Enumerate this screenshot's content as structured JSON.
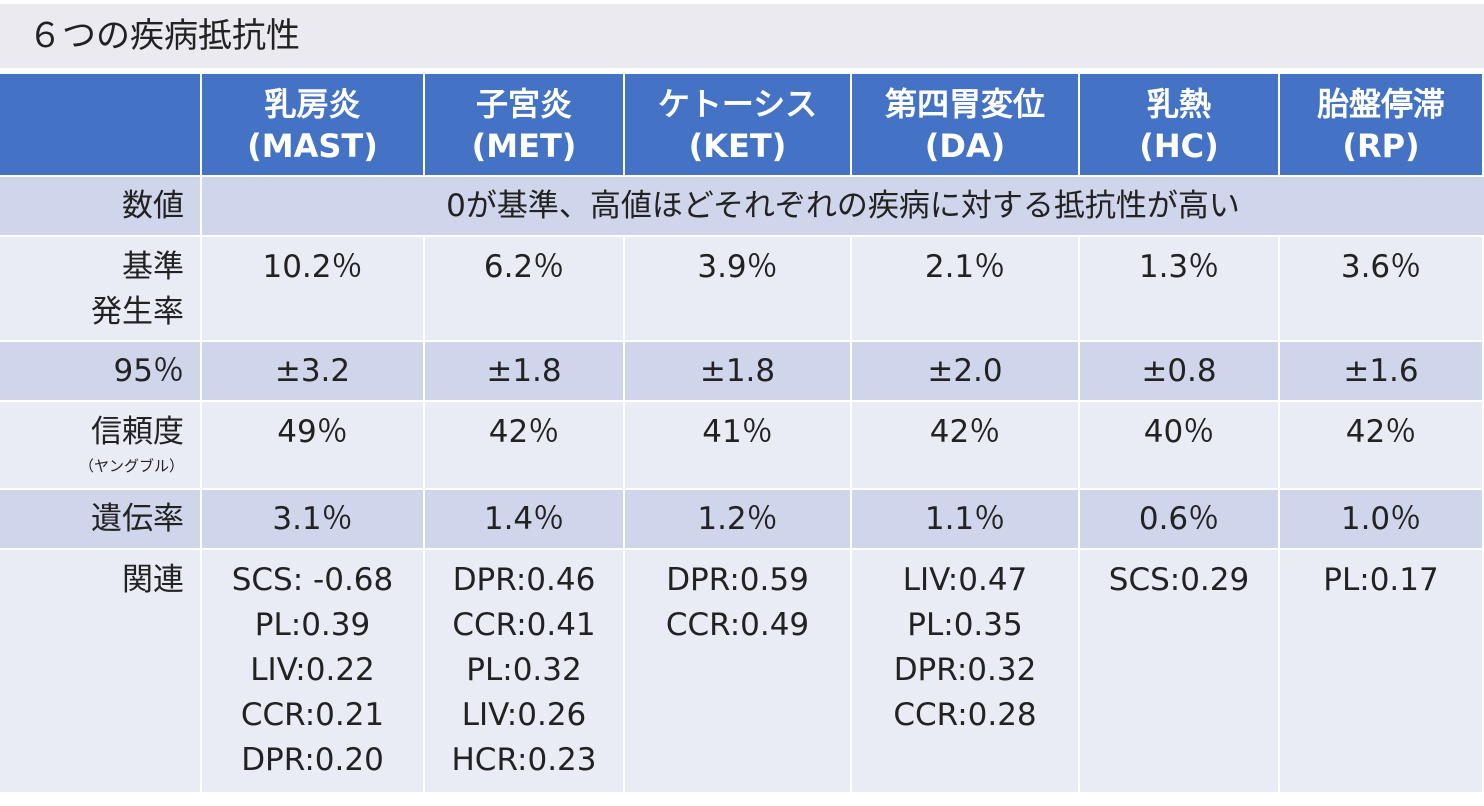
{
  "header": {
    "title": "６つの疾病抵抗性"
  },
  "table": {
    "columns": [
      {
        "name": "乳房炎",
        "code": "(MAST)"
      },
      {
        "name": "子宮炎",
        "code": "(MET)"
      },
      {
        "name": "ケトーシス",
        "code": "(KET)"
      },
      {
        "name": "第四胃変位",
        "code": "(DA)"
      },
      {
        "name": "乳熱",
        "code": "(HC)"
      },
      {
        "name": "胎盤停滞",
        "code": "(RP)"
      }
    ],
    "rows": [
      {
        "label": [
          "数値"
        ],
        "span": "0が基準、高値ほどそれぞれの疾病に対する抵抗性が高い"
      },
      {
        "label": [
          "基準",
          "発生率"
        ],
        "cells": [
          [
            "10.2％"
          ],
          [
            "6.2％"
          ],
          [
            "3.9％"
          ],
          [
            "2.1％"
          ],
          [
            "1.3％"
          ],
          [
            "3.6％"
          ]
        ]
      },
      {
        "label": [
          "95％"
        ],
        "cells": [
          [
            "±3.2"
          ],
          [
            "±1.8"
          ],
          [
            "±1.8"
          ],
          [
            "±2.0"
          ],
          [
            "±0.8"
          ],
          [
            "±1.6"
          ]
        ]
      },
      {
        "label": [
          "信頼度"
        ],
        "sublabel": "（ヤングブル）",
        "cells": [
          [
            "49％"
          ],
          [
            "42％"
          ],
          [
            "41％"
          ],
          [
            "42％"
          ],
          [
            "40％"
          ],
          [
            "42％"
          ]
        ]
      },
      {
        "label": [
          "遺伝率"
        ],
        "cells": [
          [
            "3.1％"
          ],
          [
            "1.4％"
          ],
          [
            "1.2％"
          ],
          [
            "1.1％"
          ],
          [
            "0.6％"
          ],
          [
            "1.0％"
          ]
        ]
      },
      {
        "label": [
          "関連"
        ],
        "cells": [
          [
            "SCS: -0.68",
            "PL:0.39",
            "LIV:0.22",
            "CCR:0.21",
            "DPR:0.20"
          ],
          [
            "DPR:0.46",
            "CCR:0.41",
            "PL:0.32",
            "LIV:0.26",
            "HCR:0.23"
          ],
          [
            "DPR:0.59",
            "CCR:0.49"
          ],
          [
            "LIV:0.47",
            "PL:0.35",
            "DPR:0.32",
            "CCR:0.28"
          ],
          [
            "SCS:0.29"
          ],
          [
            "PL:0.17"
          ]
        ]
      }
    ]
  }
}
